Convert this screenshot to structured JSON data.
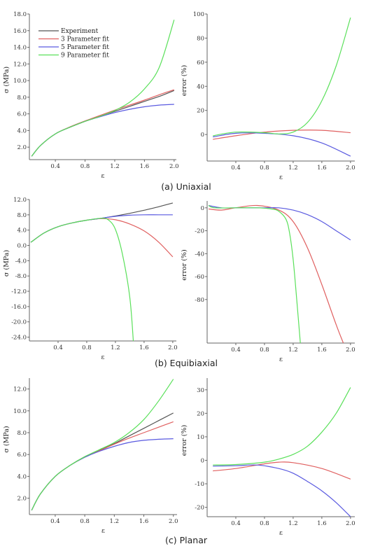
{
  "colors": {
    "Experiment": "#555555",
    "3 Parameter fit": "#e06060",
    "5 Parameter fit": "#5a5ae0",
    "9 Parameter fit": "#5ae05a"
  },
  "legend": [
    "Experiment",
    "3 Parameter fit",
    "5 Parameter fit",
    "9 Parameter fit"
  ],
  "chart_data": [
    {
      "type": "line",
      "caption": "(a) Uniaxial",
      "xlabel": "ε",
      "ylabel": "σ (MPa)",
      "xlim": [
        0.05,
        2.03
      ],
      "ylim": [
        0.5,
        18.0
      ],
      "xticks": [
        "0.4",
        "0.8",
        "1.2",
        "1.6",
        "2.0"
      ],
      "yticks": [
        "2.0",
        "4.0",
        "6.0",
        "8.0",
        "10.0",
        "12.0",
        "14.0",
        "16.0",
        "18.0"
      ],
      "legend": true,
      "series": [
        {
          "name": "Experiment",
          "x": [
            0.08,
            0.2,
            0.4,
            0.6,
            0.8,
            1.0,
            1.2,
            1.4,
            1.6,
            1.8,
            2.0
          ],
          "y": [
            0.9,
            2.2,
            3.6,
            4.4,
            5.1,
            5.7,
            6.3,
            6.9,
            7.5,
            8.1,
            8.8
          ]
        },
        {
          "name": "3 Parameter fit",
          "x": [
            0.08,
            0.2,
            0.4,
            0.6,
            0.8,
            1.0,
            1.2,
            1.4,
            1.6,
            1.8,
            2.0
          ],
          "y": [
            0.9,
            2.2,
            3.6,
            4.45,
            5.15,
            5.8,
            6.45,
            7.05,
            7.65,
            8.3,
            8.9
          ]
        },
        {
          "name": "5 Parameter fit",
          "x": [
            0.08,
            0.2,
            0.4,
            0.6,
            0.8,
            1.0,
            1.2,
            1.4,
            1.6,
            1.8,
            2.0
          ],
          "y": [
            0.9,
            2.2,
            3.6,
            4.4,
            5.1,
            5.65,
            6.15,
            6.55,
            6.85,
            7.05,
            7.15
          ]
        },
        {
          "name": "9 Parameter fit",
          "x": [
            0.08,
            0.2,
            0.4,
            0.6,
            0.8,
            1.0,
            1.2,
            1.4,
            1.6,
            1.8,
            2.0
          ],
          "y": [
            0.9,
            2.2,
            3.6,
            4.4,
            5.1,
            5.7,
            6.4,
            7.4,
            9.0,
            11.6,
            17.3
          ]
        }
      ]
    },
    {
      "type": "line",
      "caption": "",
      "xlabel": "ε",
      "ylabel": "error (%)",
      "xlim": [
        0.0,
        2.06
      ],
      "ylim": [
        -22,
        100
      ],
      "xticks": [
        "0.4",
        "0.8",
        "1.2",
        "1.6",
        "2.0"
      ],
      "yticks": [
        "0",
        "20",
        "40",
        "60",
        "80",
        "100"
      ],
      "legend": false,
      "series": [
        {
          "name": "Experiment",
          "x": [],
          "y": []
        },
        {
          "name": "3 Parameter fit",
          "x": [
            0.08,
            0.4,
            0.8,
            1.2,
            1.6,
            2.0
          ],
          "y": [
            -4,
            -1,
            2,
            3.5,
            3.5,
            1.5
          ]
        },
        {
          "name": "5 Parameter fit",
          "x": [
            0.08,
            0.4,
            0.8,
            1.2,
            1.6,
            2.0
          ],
          "y": [
            -2,
            1,
            1,
            -1,
            -7,
            -18
          ]
        },
        {
          "name": "9 Parameter fit",
          "x": [
            0.08,
            0.4,
            0.8,
            1.0,
            1.2,
            1.4,
            1.6,
            1.8,
            2.0
          ],
          "y": [
            -1,
            2,
            1.5,
            0.5,
            2,
            10,
            28,
            57,
            97
          ]
        }
      ]
    },
    {
      "type": "line",
      "caption": "(b) Equibiaxial",
      "xlabel": "ε",
      "ylabel": "σ (MPa)",
      "xlim": [
        0.0,
        2.05
      ],
      "ylim": [
        -25,
        12.0
      ],
      "xticks": [
        "0.4",
        "0.8",
        "1.2",
        "1.6",
        "2.0"
      ],
      "yticks": [
        "-24.0",
        "-20.0",
        "-16.0",
        "-12.0",
        "-8.0",
        "-4.0",
        "0.0",
        "4.0",
        "8.0",
        "12.0"
      ],
      "legend": false,
      "series": [
        {
          "name": "Experiment",
          "x": [
            0.02,
            0.2,
            0.4,
            0.6,
            0.8,
            1.0,
            1.2,
            1.4,
            1.6,
            1.8,
            2.0
          ],
          "y": [
            0.8,
            3.2,
            4.9,
            5.9,
            6.6,
            7.1,
            7.7,
            8.4,
            9.2,
            10.1,
            11.1
          ]
        },
        {
          "name": "3 Parameter fit",
          "x": [
            0.02,
            0.2,
            0.4,
            0.6,
            0.8,
            1.0,
            1.2,
            1.4,
            1.6,
            1.8,
            2.0
          ],
          "y": [
            0.8,
            3.2,
            4.9,
            5.9,
            6.6,
            7.0,
            6.7,
            5.6,
            3.8,
            0.9,
            -3.0
          ]
        },
        {
          "name": "5 Parameter fit",
          "x": [
            0.02,
            0.2,
            0.4,
            0.6,
            0.8,
            1.0,
            1.2,
            1.4,
            1.6,
            1.8,
            2.0
          ],
          "y": [
            0.8,
            3.2,
            4.9,
            5.9,
            6.6,
            7.1,
            7.6,
            7.9,
            8.0,
            8.0,
            8.0
          ]
        },
        {
          "name": "9 Parameter fit",
          "x": [
            0.02,
            0.2,
            0.4,
            0.6,
            0.8,
            1.0,
            1.1,
            1.2,
            1.3,
            1.4,
            1.45
          ],
          "y": [
            0.8,
            3.2,
            4.9,
            5.9,
            6.6,
            7.1,
            6.7,
            4.2,
            -2.5,
            -13.5,
            -25
          ]
        }
      ]
    },
    {
      "type": "line",
      "caption": "",
      "xlabel": "ε",
      "ylabel": "error (%)",
      "xlim": [
        0.0,
        2.06
      ],
      "ylim": [
        -118,
        6
      ],
      "xticks": [
        "0.4",
        "0.8",
        "1.2",
        "1.6",
        "2.0"
      ],
      "yticks": [
        "0",
        "-20",
        "-40",
        "-60",
        "-80"
      ],
      "legend": false,
      "series": [
        {
          "name": "Experiment",
          "x": [],
          "y": []
        },
        {
          "name": "3 Parameter fit",
          "x": [
            0.02,
            0.2,
            0.4,
            0.7,
            1.0,
            1.2,
            1.4,
            1.6,
            1.8,
            1.9
          ],
          "y": [
            -1,
            -2,
            0,
            2,
            -2,
            -12,
            -35,
            -67,
            -102,
            -118
          ]
        },
        {
          "name": "5 Parameter fit",
          "x": [
            0.02,
            0.2,
            0.4,
            0.6,
            0.8,
            1.0,
            1.2,
            1.4,
            1.6,
            1.8,
            2.0
          ],
          "y": [
            2,
            0,
            0,
            0,
            0,
            0,
            -2,
            -6,
            -12,
            -20,
            -28
          ]
        },
        {
          "name": "9 Parameter fit",
          "x": [
            0.02,
            0.1,
            0.4,
            0.7,
            0.9,
            1.0,
            1.1,
            1.15,
            1.2,
            1.25,
            1.3
          ],
          "y": [
            2,
            0,
            0,
            0,
            -1,
            -3,
            -10,
            -22,
            -45,
            -80,
            -118
          ]
        }
      ]
    },
    {
      "type": "line",
      "caption": "(c) Planar",
      "xlabel": "ε",
      "ylabel": "σ (MPa)",
      "xlim": [
        0.05,
        2.05
      ],
      "ylim": [
        0.5,
        13.0
      ],
      "xticks": [
        "0.4",
        "0.8",
        "1.2",
        "1.6",
        "2.0"
      ],
      "yticks": [
        "2.0",
        "4.0",
        "6.0",
        "8.0",
        "10.0",
        "12.0"
      ],
      "legend": false,
      "series": [
        {
          "name": "Experiment",
          "x": [
            0.08,
            0.2,
            0.4,
            0.6,
            0.8,
            1.0,
            1.2,
            1.4,
            1.6,
            1.8,
            2.0
          ],
          "y": [
            0.9,
            2.4,
            4.0,
            5.0,
            5.8,
            6.4,
            7.0,
            7.7,
            8.4,
            9.1,
            9.8
          ]
        },
        {
          "name": "3 Parameter fit",
          "x": [
            0.08,
            0.2,
            0.4,
            0.6,
            0.8,
            1.0,
            1.2,
            1.4,
            1.6,
            1.8,
            2.0
          ],
          "y": [
            0.9,
            2.4,
            4.0,
            5.0,
            5.75,
            6.35,
            6.95,
            7.5,
            8.0,
            8.5,
            9.0
          ]
        },
        {
          "name": "5 Parameter fit",
          "x": [
            0.08,
            0.2,
            0.4,
            0.6,
            0.8,
            1.0,
            1.2,
            1.4,
            1.6,
            1.8,
            2.0
          ],
          "y": [
            0.9,
            2.4,
            4.0,
            5.0,
            5.75,
            6.3,
            6.75,
            7.1,
            7.3,
            7.4,
            7.45
          ]
        },
        {
          "name": "9 Parameter fit",
          "x": [
            0.08,
            0.2,
            0.4,
            0.6,
            0.8,
            1.0,
            1.2,
            1.4,
            1.6,
            1.8,
            2.0
          ],
          "y": [
            0.9,
            2.4,
            4.0,
            5.0,
            5.8,
            6.45,
            7.1,
            8.0,
            9.2,
            10.9,
            12.9
          ]
        }
      ]
    },
    {
      "type": "line",
      "caption": "",
      "xlabel": "ε",
      "ylabel": "error (%)",
      "xlim": [
        0.0,
        2.06
      ],
      "ylim": [
        -24,
        35
      ],
      "xticks": [
        "0.4",
        "0.8",
        "1.2",
        "1.6",
        "2.0"
      ],
      "yticks": [
        "30",
        "20",
        "10",
        "0",
        "-10",
        "-20"
      ],
      "legend": false,
      "series": [
        {
          "name": "Experiment",
          "x": [],
          "y": []
        },
        {
          "name": "3 Parameter fit",
          "x": [
            0.08,
            0.4,
            0.8,
            1.0,
            1.2,
            1.6,
            2.0
          ],
          "y": [
            -4.5,
            -3.5,
            -1.5,
            -0.8,
            -1.0,
            -3.5,
            -8
          ]
        },
        {
          "name": "5 Parameter fit",
          "x": [
            0.08,
            0.4,
            0.7,
            1.0,
            1.2,
            1.4,
            1.6,
            1.8,
            2.0
          ],
          "y": [
            -2.5,
            -2.3,
            -2.0,
            -3.5,
            -5.5,
            -9,
            -13,
            -18,
            -24
          ]
        },
        {
          "name": "9 Parameter fit",
          "x": [
            0.08,
            0.4,
            0.8,
            1.0,
            1.2,
            1.4,
            1.6,
            1.8,
            2.0
          ],
          "y": [
            -2,
            -1.8,
            -0.8,
            0.5,
            2.5,
            6,
            12,
            20,
            31
          ]
        }
      ]
    }
  ]
}
